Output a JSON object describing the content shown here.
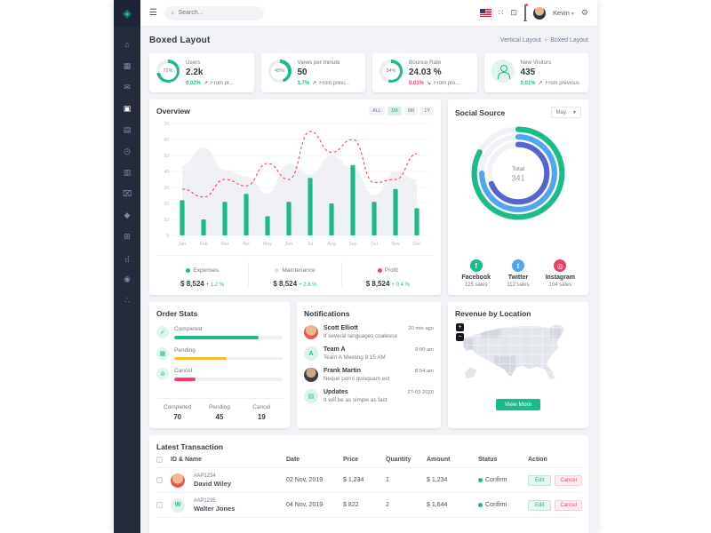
{
  "icons": {
    "hamburger": "☰",
    "search": "⌕",
    "apps": "∷",
    "fullscreen": "⊡",
    "caret": "▾",
    "gear": "⚙",
    "chevron": "›",
    "logo": "◈"
  },
  "header": {
    "search_placeholder": "Search...",
    "user_name": "Kevin"
  },
  "sidebar": {
    "items": [
      {
        "name": "home",
        "glyph": "⌂"
      },
      {
        "name": "calendar",
        "glyph": "▦"
      },
      {
        "name": "email",
        "glyph": "✉"
      },
      {
        "name": "layouts",
        "glyph": "▣",
        "active": true
      },
      {
        "name": "ui-elements",
        "glyph": "▤"
      },
      {
        "name": "history",
        "glyph": "◷"
      },
      {
        "name": "pages",
        "glyph": "▥"
      },
      {
        "name": "apps",
        "glyph": "⌧"
      },
      {
        "name": "tags",
        "glyph": "◆"
      },
      {
        "name": "tables",
        "glyph": "⊞"
      },
      {
        "name": "charts",
        "glyph": "⣴"
      },
      {
        "name": "maps",
        "glyph": "◉"
      },
      {
        "name": "share",
        "glyph": "∴"
      }
    ]
  },
  "page": {
    "title": "Boxed Layout",
    "breadcrumb": [
      "Vertical Layout",
      "Boxed Layout"
    ]
  },
  "stats": [
    {
      "label": "Users",
      "value": "2.2k",
      "circle_text": "72%",
      "percent": 72,
      "delta": "0.02%",
      "delta_color": "#1cbb8c",
      "arrow": "↗",
      "note": "From pr..."
    },
    {
      "label": "Views per minute",
      "value": "50",
      "circle_text": "45%",
      "percent": 45,
      "delta": "1.7%",
      "delta_color": "#1cbb8c",
      "arrow": "↗",
      "note": "From previ..."
    },
    {
      "label": "Bounce Rate",
      "value": "24.03 %",
      "circle_text": "54%",
      "percent": 54,
      "delta": "0.01%",
      "delta_color": "#ff3d60",
      "arrow": "↘",
      "note": "From pre..."
    },
    {
      "label": "New Visitors",
      "value": "435",
      "icon": "user",
      "delta": "0.01%",
      "delta_color": "#1cbb8c",
      "arrow": "↗",
      "note": "From previous"
    }
  ],
  "overview": {
    "title": "Overview",
    "ranges": [
      "ALL",
      "1M",
      "6M",
      "1Y"
    ],
    "active_range": "1M",
    "legend": [
      {
        "name": "Expenses",
        "amount": "$ 8,524",
        "delta": "+ 1.2 %",
        "color": "#1cbb8c"
      },
      {
        "name": "Maintenance",
        "amount": "$ 8,524",
        "delta": "+ 2.8 %",
        "color": "#dfe3e8"
      },
      {
        "name": "Profit",
        "amount": "$ 8,524",
        "delta": "+ 0.4 %",
        "color": "#ff3d60"
      }
    ]
  },
  "social": {
    "title": "Social Source",
    "month": "May",
    "platforms": [
      {
        "name": "Facebook",
        "sales": "125 sales",
        "color": "#1cbb8c",
        "glyph": "f"
      },
      {
        "name": "Twitter",
        "sales": "112 sales",
        "color": "#50a5f1",
        "glyph": "t"
      },
      {
        "name": "Instagram",
        "sales": "104 sales",
        "color": "#e83e62",
        "glyph": "◎"
      }
    ]
  },
  "order_stats": {
    "title": "Order Stats",
    "summary": [
      {
        "label": "Completed",
        "value": "70"
      },
      {
        "label": "Pending",
        "value": "45"
      },
      {
        "label": "Cancel",
        "value": "19"
      }
    ]
  },
  "notifications": {
    "title": "Notifications",
    "items": [
      {
        "name": "Scott Elliott",
        "time": "20 min ago",
        "text": "If several languages coalesce",
        "avatar_text": ""
      },
      {
        "name": "Team A",
        "time": "9:00 am",
        "text": "Team A Meeting 9:15 AM",
        "avatar_text": "A"
      },
      {
        "name": "Frank Martin",
        "time": "8:54 am",
        "text": "Neque porro quisquam est",
        "avatar_text": ""
      },
      {
        "name": "Updates",
        "time": "27-03-2020",
        "text": "It will be as simple as fact",
        "avatar_text": "▤"
      }
    ]
  },
  "revenue": {
    "title": "Revenue by Location",
    "view_more": "View More",
    "zoom_in": "+",
    "zoom_out": "−"
  },
  "transactions": {
    "title": "Latest Transaction",
    "columns": [
      "ID & Name",
      "Date",
      "Price",
      "Quantity",
      "Amount",
      "Status",
      "Action"
    ],
    "edit_label": "Edit",
    "cancel_label": "Cancel",
    "rows": [
      {
        "id": "#AP1234",
        "name": "David Wiley",
        "date": "02 Nov, 2019",
        "price": "$ 1,234",
        "quantity": "1",
        "amount": "$ 1,234",
        "status": "Confirm",
        "avatar_text": ""
      },
      {
        "id": "#AP1235",
        "name": "Walter Jones",
        "date": "04 Nov, 2019",
        "price": "$ 822",
        "quantity": "2",
        "amount": "$ 1,644",
        "status": "Confirm",
        "avatar_text": "W"
      }
    ]
  },
  "chart_data": [
    {
      "id": "overview",
      "type": "bar",
      "title": "Overview",
      "categories": [
        "Jan",
        "Feb",
        "Mar",
        "Apr",
        "May",
        "Jun",
        "Jul",
        "Aug",
        "Sep",
        "Oct",
        "Nov",
        "Dec"
      ],
      "series": [
        {
          "name": "Expenses",
          "type": "bar",
          "color": "#1cbb8c",
          "values": [
            22,
            10,
            21,
            26,
            12,
            21,
            36,
            20,
            44,
            21,
            29,
            17
          ]
        },
        {
          "name": "Maintenance",
          "type": "area",
          "color": "#eceef3",
          "values": [
            44,
            55,
            41,
            37,
            26,
            45,
            38,
            50,
            42,
            25,
            40,
            35
          ]
        },
        {
          "name": "Profit",
          "type": "dashed-line",
          "color": "#ff3d60",
          "values": [
            29,
            24,
            35,
            31,
            45,
            35,
            65,
            52,
            60,
            33,
            35,
            51
          ]
        }
      ],
      "xlabel": "",
      "ylabel": "",
      "ylim": [
        0,
        70
      ],
      "yticks": [
        0,
        10,
        20,
        30,
        40,
        50,
        60,
        70
      ],
      "grid": true,
      "legend_position": "bottom"
    },
    {
      "id": "social-source",
      "type": "pie",
      "subtype": "radial-donut",
      "center_label": "Total",
      "center_value": "341",
      "series": [
        {
          "name": "Facebook",
          "value": 125,
          "percent": 83,
          "color": "#1cbb8c"
        },
        {
          "name": "Twitter",
          "value": 112,
          "percent": 75,
          "color": "#50a5f1"
        },
        {
          "name": "Instagram",
          "value": 104,
          "percent": 69,
          "color": "#5664d2"
        }
      ]
    },
    {
      "id": "order-stats",
      "type": "bar",
      "subtype": "progress",
      "items": [
        {
          "label": "Completed",
          "value": 70,
          "percent": 78,
          "color": "#1cbb8c",
          "glyph": "✓"
        },
        {
          "label": "Pending",
          "value": 45,
          "percent": 48,
          "color": "#fcb92c",
          "glyph": "▦"
        },
        {
          "label": "Cancel",
          "value": 19,
          "percent": 20,
          "color": "#ff3d60",
          "glyph": "⊘"
        }
      ]
    }
  ]
}
